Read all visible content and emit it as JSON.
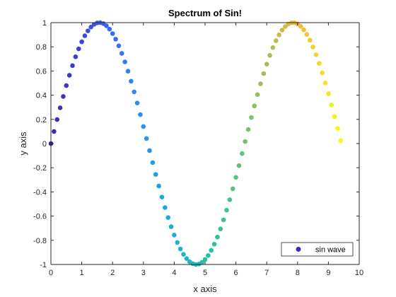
{
  "chart_data": {
    "type": "scatter",
    "title": "Spectrum of Sin!",
    "xlabel": "x axis",
    "ylabel": "y axis",
    "xlim": [
      0,
      10
    ],
    "ylim": [
      -1,
      1
    ],
    "xticks": [
      "0",
      "1",
      "2",
      "3",
      "4",
      "5",
      "6",
      "7",
      "8",
      "9",
      "10"
    ],
    "yticks": [
      "-1",
      "-0.8",
      "-0.6",
      "-0.4",
      "-0.2",
      "0",
      "0.2",
      "0.4",
      "0.6",
      "0.8",
      "1"
    ],
    "grid": false,
    "legend_position": "bottom-right",
    "colormap": "parula",
    "series": [
      {
        "name": "sin wave",
        "function": "y = sin(x)",
        "x_start": 0,
        "x_end": 9.4,
        "x_step": 0.1,
        "legend_color": "#3a2bc0"
      }
    ]
  },
  "colors": {
    "axis": "#262626",
    "background": "#ffffff",
    "parula_stops": [
      "#3e26a8",
      "#4050e3",
      "#2e87f7",
      "#19b2d3",
      "#2ac29b",
      "#93bf5c",
      "#f0b93a",
      "#f9fb0e"
    ]
  }
}
